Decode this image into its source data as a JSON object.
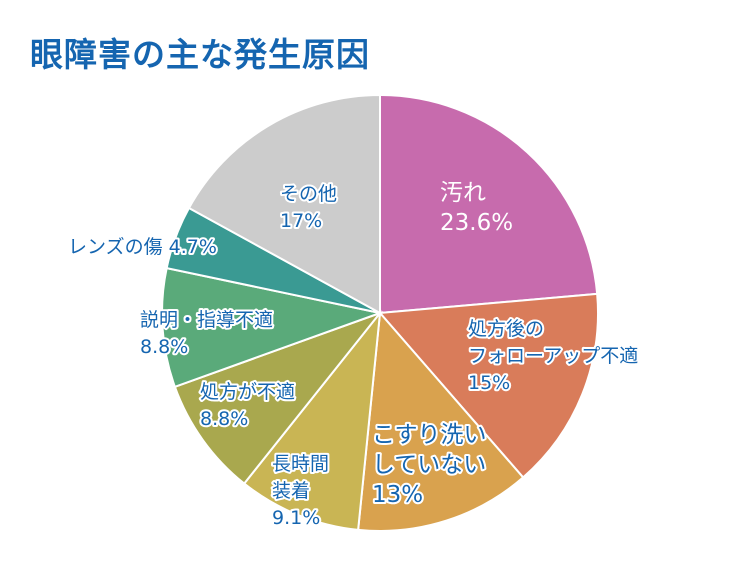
{
  "chart_data": {
    "type": "pie",
    "title": "眼障害の主な発生原因",
    "start_angle_deg": 0,
    "direction": "clockwise",
    "slices": [
      {
        "lines": [
          "汚れ",
          "23.6%"
        ],
        "value": 23.6,
        "color": "#c76bad",
        "text_color": "#ffffff",
        "big": true
      },
      {
        "lines": [
          "処方後の",
          "フォローアップ不適",
          "15%"
        ],
        "value": 15,
        "color": "#d97c5a",
        "text_color": "#1565b0",
        "big": false
      },
      {
        "lines": [
          "こすり洗い",
          "していない",
          "13%"
        ],
        "value": 13,
        "color": "#d9a24e",
        "text_color": "#1565b0",
        "big": true
      },
      {
        "lines": [
          "長時間",
          "装着",
          "9.1%"
        ],
        "value": 9.1,
        "color": "#c9b554",
        "text_color": "#1565b0",
        "big": false
      },
      {
        "lines": [
          "処方が不適",
          "8.8%"
        ],
        "value": 8.8,
        "color": "#a9a84e",
        "text_color": "#1565b0",
        "big": false
      },
      {
        "lines": [
          "説明・指導不適",
          "8.8%"
        ],
        "value": 8.8,
        "color": "#5aaa7a",
        "text_color": "#1565b0",
        "big": false
      },
      {
        "lines": [
          "レンズの傷 4.7%"
        ],
        "value": 4.7,
        "color": "#3a9a93",
        "text_color": "#1565b0",
        "big": false
      },
      {
        "lines": [
          "その他",
          "17%"
        ],
        "value": 17,
        "color": "#cccccc",
        "text_color": "#1565b0",
        "big": false
      }
    ]
  }
}
